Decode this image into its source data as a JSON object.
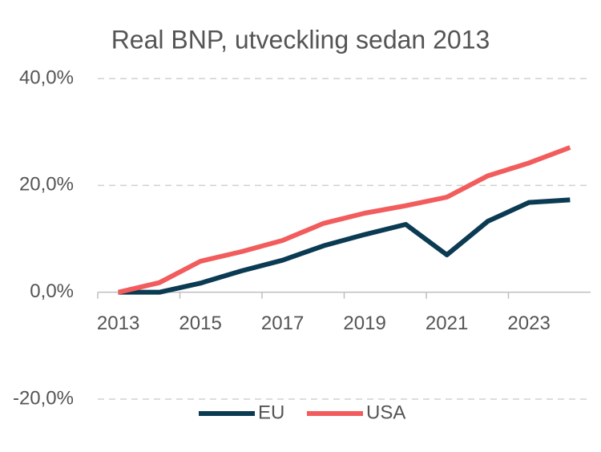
{
  "chart_data": {
    "type": "line",
    "title": "Real BNP, utveckling sedan 2013",
    "x": [
      2013,
      2014,
      2015,
      2016,
      2017,
      2018,
      2019,
      2020,
      2021,
      2022,
      2023,
      2024
    ],
    "series": [
      {
        "name": "EU",
        "color": "#0b3a53",
        "values": [
          0,
          0,
          1.7,
          4.0,
          6.0,
          8.7,
          10.8,
          12.7,
          7.0,
          13.3,
          16.8,
          17.3
        ]
      },
      {
        "name": "USA",
        "color": "#f25c5c",
        "values": [
          0,
          1.8,
          5.8,
          7.6,
          9.7,
          12.9,
          14.8,
          16.2,
          17.8,
          21.8,
          24.2,
          27.1
        ]
      }
    ],
    "xlim": [
      2012.5,
      2024.5
    ],
    "xticks": [
      2013,
      2015,
      2017,
      2019,
      2021,
      2023
    ],
    "ylim": [
      -20,
      40
    ],
    "yticks": [
      {
        "value": -20,
        "label": "-20,0%"
      },
      {
        "value": 0,
        "label": "0,0%"
      },
      {
        "value": 20,
        "label": "20,0%"
      },
      {
        "value": 40,
        "label": "40,0%"
      }
    ],
    "grid": true,
    "legend": "bottom"
  }
}
